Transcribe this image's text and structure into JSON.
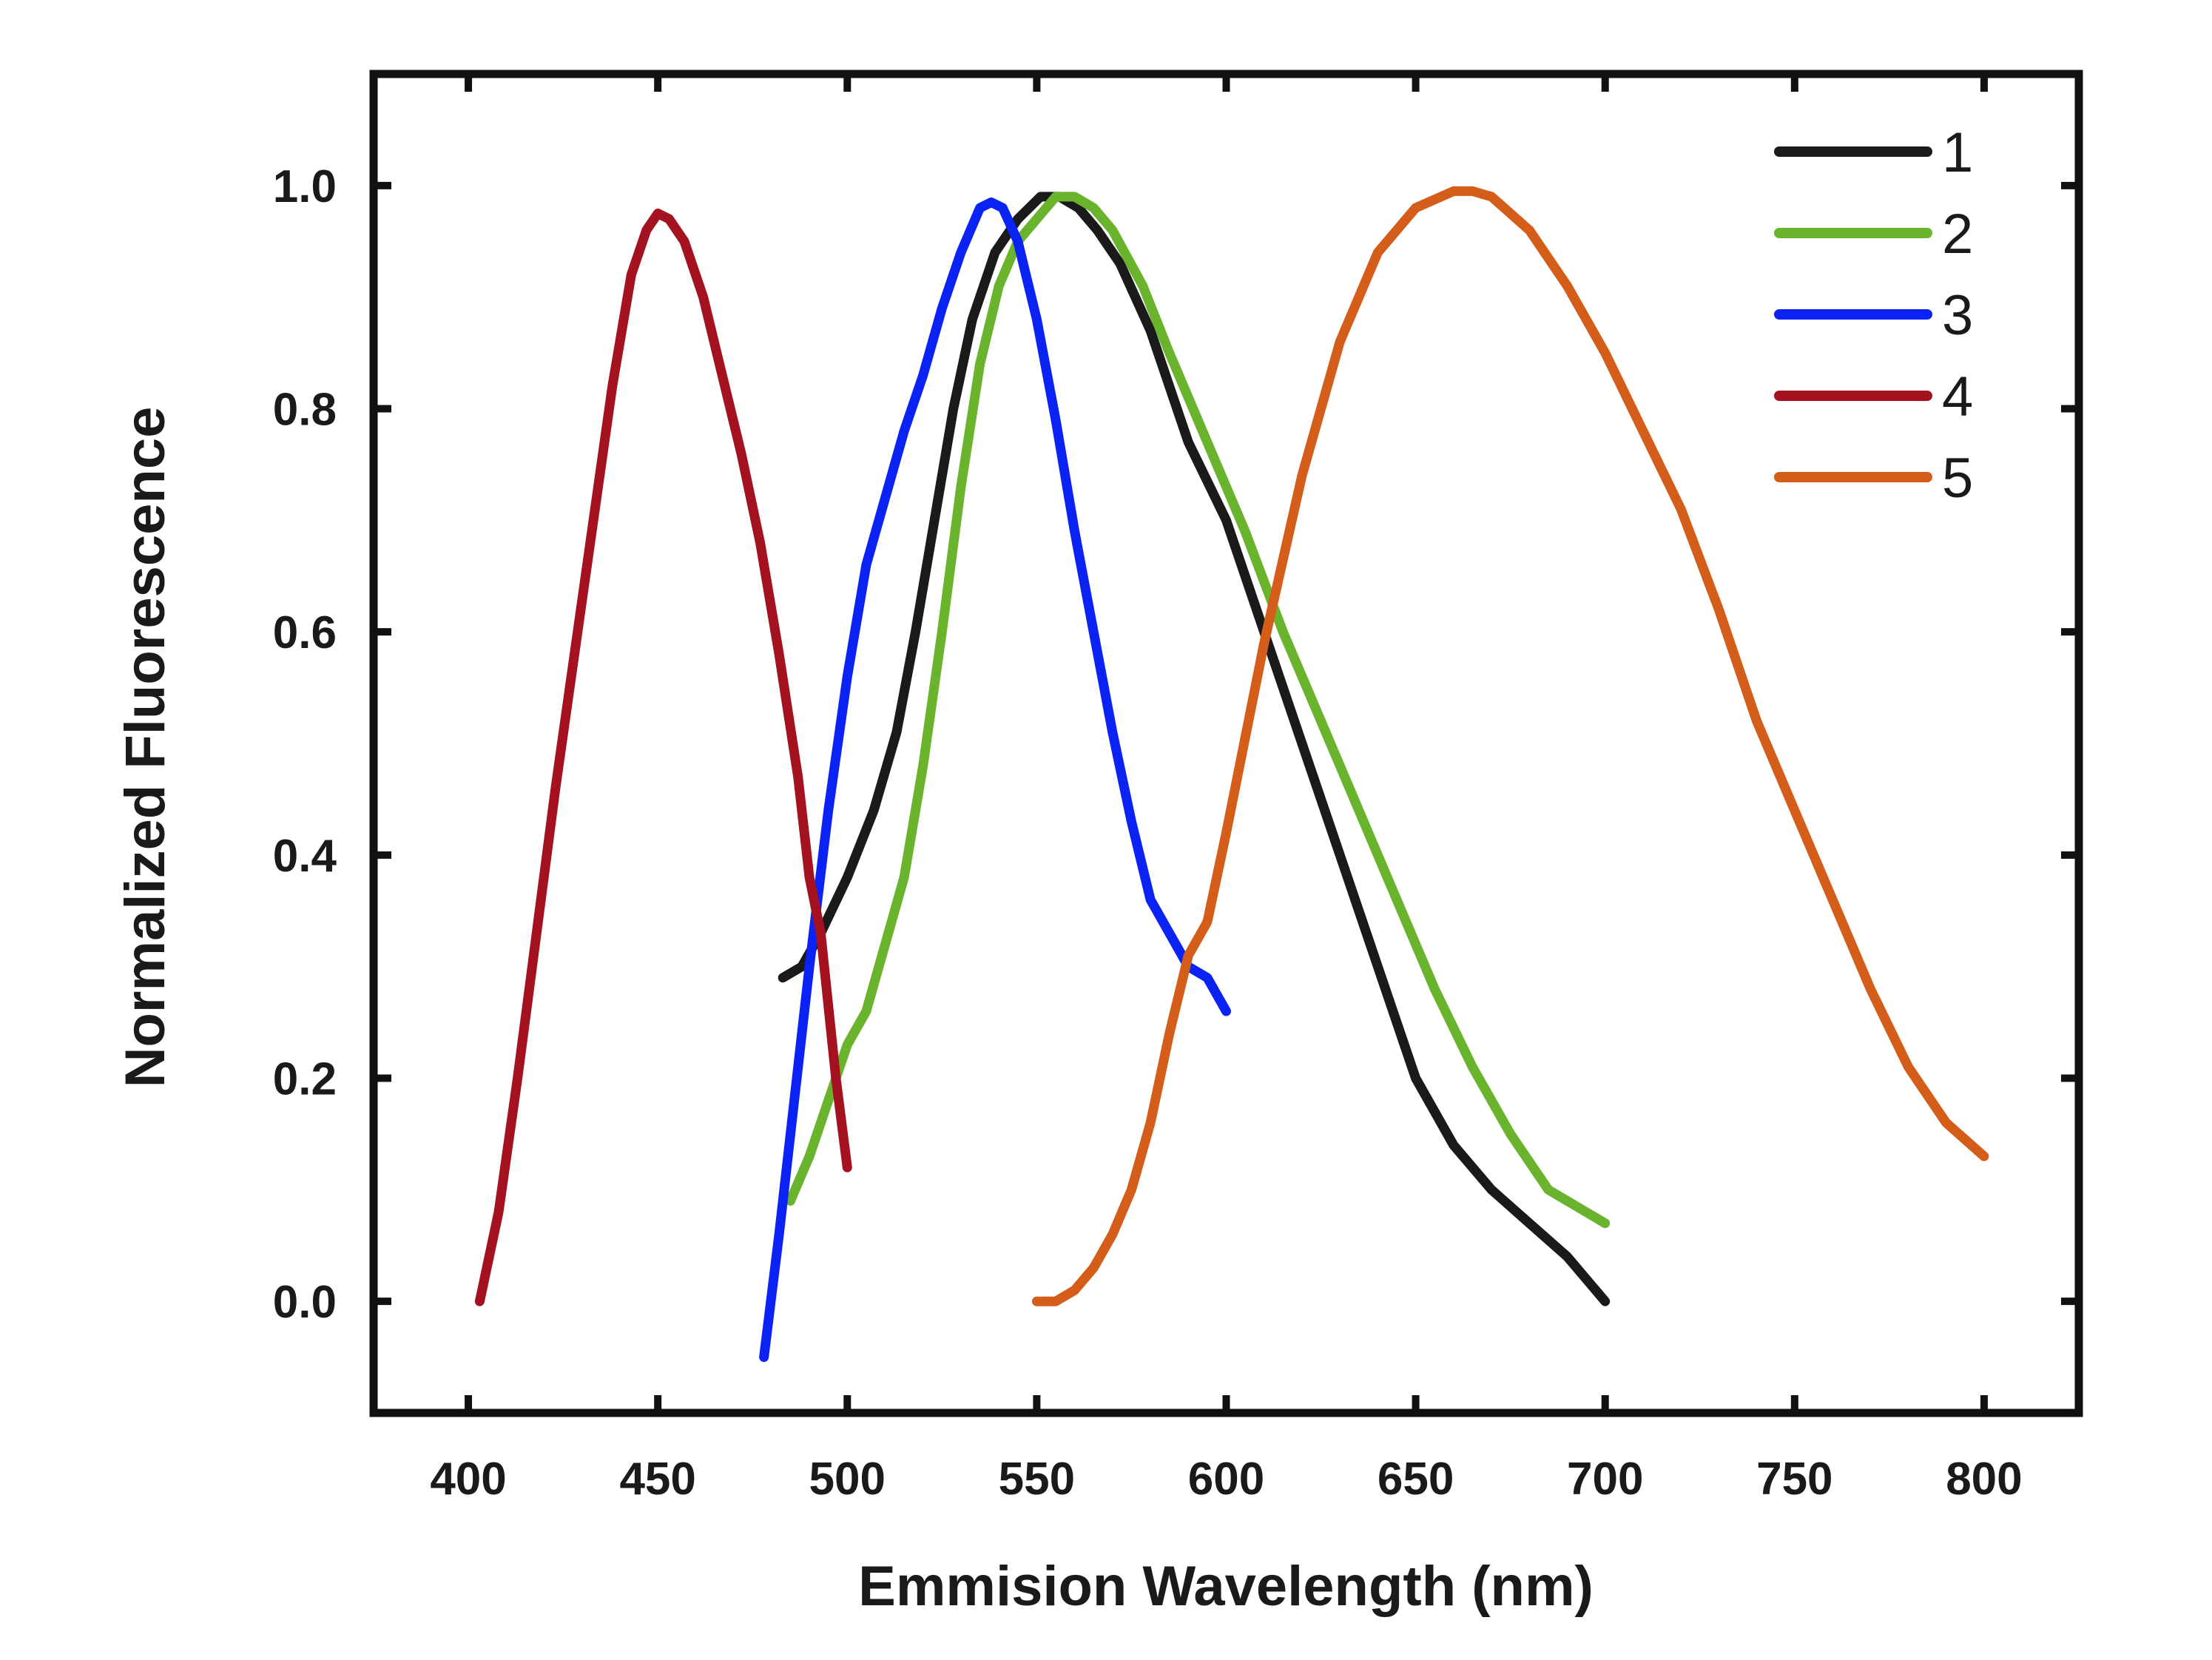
{
  "chart_data": {
    "type": "line",
    "title": "",
    "xlabel": "Emmision Wavelength (nm)",
    "ylabel": "Normalized Fluorescence",
    "xlim": [
      375,
      825
    ],
    "ylim": [
      -0.1,
      1.1
    ],
    "xticks": [
      400,
      450,
      500,
      550,
      600,
      650,
      700,
      750,
      800
    ],
    "yticks": [
      0.0,
      0.2,
      0.4,
      0.6,
      0.8,
      1.0
    ],
    "xtick_labels": [
      "400",
      "450",
      "500",
      "550",
      "600",
      "650",
      "700",
      "750",
      "800"
    ],
    "ytick_labels": [
      "0.0",
      "0.2",
      "0.4",
      "0.6",
      "0.8",
      "1.0"
    ],
    "grid": false,
    "legend_position": "top-right",
    "series": [
      {
        "name": "1",
        "color": "#1a1a1a",
        "points": [
          [
            483,
            0.29
          ],
          [
            488,
            0.3
          ],
          [
            493,
            0.33
          ],
          [
            500,
            0.38
          ],
          [
            507,
            0.44
          ],
          [
            513,
            0.51
          ],
          [
            518,
            0.6
          ],
          [
            523,
            0.7
          ],
          [
            528,
            0.8
          ],
          [
            533,
            0.88
          ],
          [
            539,
            0.94
          ],
          [
            545,
            0.97
          ],
          [
            551,
            0.99
          ],
          [
            556,
            0.99
          ],
          [
            561,
            0.98
          ],
          [
            566,
            0.96
          ],
          [
            572,
            0.93
          ],
          [
            580,
            0.87
          ],
          [
            590,
            0.77
          ],
          [
            600,
            0.7
          ],
          [
            610,
            0.6
          ],
          [
            620,
            0.5
          ],
          [
            630,
            0.4
          ],
          [
            640,
            0.3
          ],
          [
            650,
            0.2
          ],
          [
            660,
            0.14
          ],
          [
            670,
            0.1
          ],
          [
            680,
            0.07
          ],
          [
            690,
            0.04
          ],
          [
            700,
            0.0
          ]
        ]
      },
      {
        "name": "2",
        "color": "#6ab42d",
        "points": [
          [
            485,
            0.09
          ],
          [
            490,
            0.13
          ],
          [
            495,
            0.18
          ],
          [
            500,
            0.23
          ],
          [
            505,
            0.26
          ],
          [
            510,
            0.32
          ],
          [
            515,
            0.38
          ],
          [
            520,
            0.48
          ],
          [
            525,
            0.6
          ],
          [
            530,
            0.73
          ],
          [
            535,
            0.84
          ],
          [
            540,
            0.91
          ],
          [
            545,
            0.95
          ],
          [
            550,
            0.97
          ],
          [
            555,
            0.99
          ],
          [
            560,
            0.99
          ],
          [
            565,
            0.98
          ],
          [
            570,
            0.96
          ],
          [
            578,
            0.91
          ],
          [
            585,
            0.85
          ],
          [
            595,
            0.77
          ],
          [
            605,
            0.69
          ],
          [
            615,
            0.6
          ],
          [
            625,
            0.52
          ],
          [
            635,
            0.44
          ],
          [
            645,
            0.36
          ],
          [
            655,
            0.28
          ],
          [
            665,
            0.21
          ],
          [
            675,
            0.15
          ],
          [
            685,
            0.1
          ],
          [
            700,
            0.07
          ]
        ]
      },
      {
        "name": "3",
        "color": "#0b22f5",
        "points": [
          [
            478,
            -0.05
          ],
          [
            482,
            0.06
          ],
          [
            486,
            0.18
          ],
          [
            490,
            0.3
          ],
          [
            495,
            0.44
          ],
          [
            500,
            0.56
          ],
          [
            505,
            0.66
          ],
          [
            510,
            0.72
          ],
          [
            515,
            0.78
          ],
          [
            520,
            0.83
          ],
          [
            525,
            0.89
          ],
          [
            530,
            0.94
          ],
          [
            535,
            0.98
          ],
          [
            538,
            0.985
          ],
          [
            541,
            0.98
          ],
          [
            545,
            0.95
          ],
          [
            550,
            0.88
          ],
          [
            555,
            0.79
          ],
          [
            560,
            0.69
          ],
          [
            565,
            0.6
          ],
          [
            570,
            0.51
          ],
          [
            575,
            0.43
          ],
          [
            580,
            0.36
          ],
          [
            585,
            0.33
          ],
          [
            590,
            0.3
          ],
          [
            595,
            0.29
          ],
          [
            600,
            0.26
          ]
        ]
      },
      {
        "name": "4",
        "color": "#a3121e",
        "points": [
          [
            403,
            0.0
          ],
          [
            408,
            0.08
          ],
          [
            413,
            0.2
          ],
          [
            418,
            0.33
          ],
          [
            423,
            0.46
          ],
          [
            428,
            0.58
          ],
          [
            433,
            0.7
          ],
          [
            438,
            0.82
          ],
          [
            443,
            0.92
          ],
          [
            447,
            0.96
          ],
          [
            450,
            0.975
          ],
          [
            453,
            0.97
          ],
          [
            457,
            0.95
          ],
          [
            462,
            0.9
          ],
          [
            467,
            0.83
          ],
          [
            472,
            0.76
          ],
          [
            477,
            0.68
          ],
          [
            482,
            0.58
          ],
          [
            487,
            0.47
          ],
          [
            490,
            0.38
          ],
          [
            493,
            0.33
          ],
          [
            497,
            0.2
          ],
          [
            500,
            0.12
          ]
        ]
      },
      {
        "name": "5",
        "color": "#d45d1a",
        "points": [
          [
            550,
            0.0
          ],
          [
            555,
            0.0
          ],
          [
            560,
            0.01
          ],
          [
            565,
            0.03
          ],
          [
            570,
            0.06
          ],
          [
            575,
            0.1
          ],
          [
            580,
            0.16
          ],
          [
            585,
            0.24
          ],
          [
            590,
            0.31
          ],
          [
            595,
            0.34
          ],
          [
            600,
            0.42
          ],
          [
            610,
            0.59
          ],
          [
            620,
            0.74
          ],
          [
            630,
            0.86
          ],
          [
            640,
            0.94
          ],
          [
            650,
            0.98
          ],
          [
            660,
            0.995
          ],
          [
            665,
            0.995
          ],
          [
            670,
            0.99
          ],
          [
            680,
            0.96
          ],
          [
            690,
            0.91
          ],
          [
            700,
            0.85
          ],
          [
            710,
            0.78
          ],
          [
            720,
            0.71
          ],
          [
            730,
            0.62
          ],
          [
            740,
            0.52
          ],
          [
            750,
            0.44
          ],
          [
            760,
            0.36
          ],
          [
            770,
            0.28
          ],
          [
            780,
            0.21
          ],
          [
            790,
            0.16
          ],
          [
            800,
            0.13
          ]
        ]
      }
    ]
  }
}
